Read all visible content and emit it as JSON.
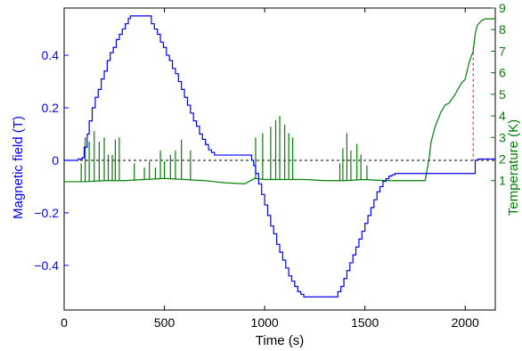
{
  "chart_data": {
    "type": "line",
    "xlabel": "Time (s)",
    "ylabel_left": "Magnetic field (T)",
    "ylabel_right": "Temperature (K)",
    "xlim": [
      0,
      2150
    ],
    "ylim_left": [
      -0.57,
      0.58
    ],
    "ylim_right": [
      -5.0,
      9.0
    ],
    "x_ticks": [
      0,
      500,
      1000,
      1500,
      2000
    ],
    "x_tick_labels": [
      "0",
      "500",
      "1000",
      "1500",
      "2000"
    ],
    "y_left_ticks": [
      -0.4,
      -0.2,
      0,
      0.2,
      0.4
    ],
    "y_left_tick_labels": [
      "−0.4",
      "−0.2",
      "0",
      "0.2",
      "0.4"
    ],
    "y_right_ticks": [
      1,
      2,
      3,
      4,
      5,
      6,
      7,
      8,
      9
    ],
    "y_right_tick_labels": [
      "1",
      "2",
      "3",
      "4",
      "5",
      "6",
      "7",
      "8",
      "9"
    ],
    "colors": {
      "field": "#0000ff",
      "temperature": "#008000",
      "zero_line": "#000000",
      "marker": "#ff0000"
    },
    "field_series": {
      "x": [
        0,
        60,
        70,
        90,
        100,
        115,
        125,
        140,
        155,
        170,
        185,
        200,
        215,
        230,
        245,
        260,
        275,
        290,
        305,
        320,
        330,
        350,
        420,
        435,
        450,
        465,
        480,
        495,
        510,
        525,
        540,
        555,
        570,
        585,
        600,
        615,
        630,
        645,
        660,
        675,
        690,
        705,
        720,
        735,
        750,
        900,
        935,
        945,
        955,
        970,
        985,
        1000,
        1015,
        1030,
        1045,
        1060,
        1075,
        1090,
        1105,
        1120,
        1135,
        1150,
        1165,
        1180,
        1195,
        1210,
        1230,
        1350,
        1365,
        1380,
        1395,
        1410,
        1425,
        1440,
        1455,
        1470,
        1485,
        1500,
        1515,
        1530,
        1545,
        1560,
        1575,
        1590,
        1605,
        1620,
        1635,
        1650,
        1800,
        2040,
        2050,
        2060,
        2070,
        2150
      ],
      "y": [
        0.0,
        0.0,
        0.005,
        0.01,
        0.05,
        0.1,
        0.15,
        0.2,
        0.24,
        0.27,
        0.31,
        0.34,
        0.38,
        0.41,
        0.43,
        0.46,
        0.48,
        0.5,
        0.52,
        0.54,
        0.55,
        0.55,
        0.55,
        0.52,
        0.5,
        0.48,
        0.45,
        0.43,
        0.4,
        0.38,
        0.35,
        0.33,
        0.3,
        0.27,
        0.24,
        0.21,
        0.18,
        0.15,
        0.13,
        0.1,
        0.08,
        0.06,
        0.04,
        0.03,
        0.02,
        0.02,
        0.0,
        -0.02,
        -0.05,
        -0.09,
        -0.13,
        -0.17,
        -0.21,
        -0.25,
        -0.28,
        -0.32,
        -0.35,
        -0.38,
        -0.41,
        -0.44,
        -0.46,
        -0.48,
        -0.5,
        -0.51,
        -0.52,
        -0.52,
        -0.52,
        -0.52,
        -0.5,
        -0.48,
        -0.45,
        -0.42,
        -0.39,
        -0.36,
        -0.33,
        -0.3,
        -0.27,
        -0.24,
        -0.21,
        -0.18,
        -0.15,
        -0.12,
        -0.1,
        -0.08,
        -0.07,
        -0.06,
        -0.055,
        -0.05,
        -0.05,
        -0.05,
        0.0,
        0.003,
        0.005,
        0.005
      ]
    },
    "temperature_series": {
      "baseline": {
        "x": [
          0,
          100,
          200,
          300,
          400,
          500,
          600,
          700,
          750,
          800,
          900,
          950,
          1000,
          1100,
          1200,
          1300,
          1400,
          1500,
          1600,
          1700,
          1800,
          1820,
          1830,
          1850,
          1880,
          1900,
          1920,
          1950,
          1980,
          2000,
          2020,
          2040,
          2050,
          2060,
          2080,
          2100,
          2150
        ],
        "y": [
          0.95,
          0.95,
          1.0,
          1.0,
          1.05,
          1.1,
          1.05,
          1.0,
          0.95,
          0.9,
          0.85,
          1.1,
          1.05,
          1.05,
          1.05,
          1.0,
          1.0,
          1.05,
          1.0,
          1.0,
          1.0,
          2.0,
          2.8,
          3.5,
          4.2,
          4.5,
          4.6,
          5.0,
          5.5,
          5.7,
          6.5,
          7.0,
          7.8,
          8.2,
          8.4,
          8.5,
          8.5
        ]
      },
      "spikes": {
        "x": [
          85,
          105,
          125,
          150,
          175,
          200,
          220,
          240,
          255,
          275,
          350,
          400,
          425,
          455,
          480,
          500,
          530,
          555,
          585,
          630,
          955,
          990,
          1030,
          1055,
          1075,
          1100,
          1120,
          1140,
          1375,
          1390,
          1410,
          1430,
          1460,
          1480,
          1510
        ],
        "y": [
          1.8,
          3.0,
          2.8,
          3.3,
          2.8,
          3.0,
          2.2,
          2.2,
          2.9,
          3.0,
          1.8,
          1.6,
          1.9,
          1.6,
          2.4,
          1.9,
          2.2,
          2.4,
          2.9,
          2.4,
          3.0,
          3.2,
          3.5,
          3.8,
          4.0,
          3.6,
          3.2,
          3.0,
          1.8,
          2.5,
          3.2,
          2.4,
          2.7,
          2.2,
          1.7
        ]
      }
    },
    "zero_line_y": 0,
    "marker_x": 2040
  }
}
